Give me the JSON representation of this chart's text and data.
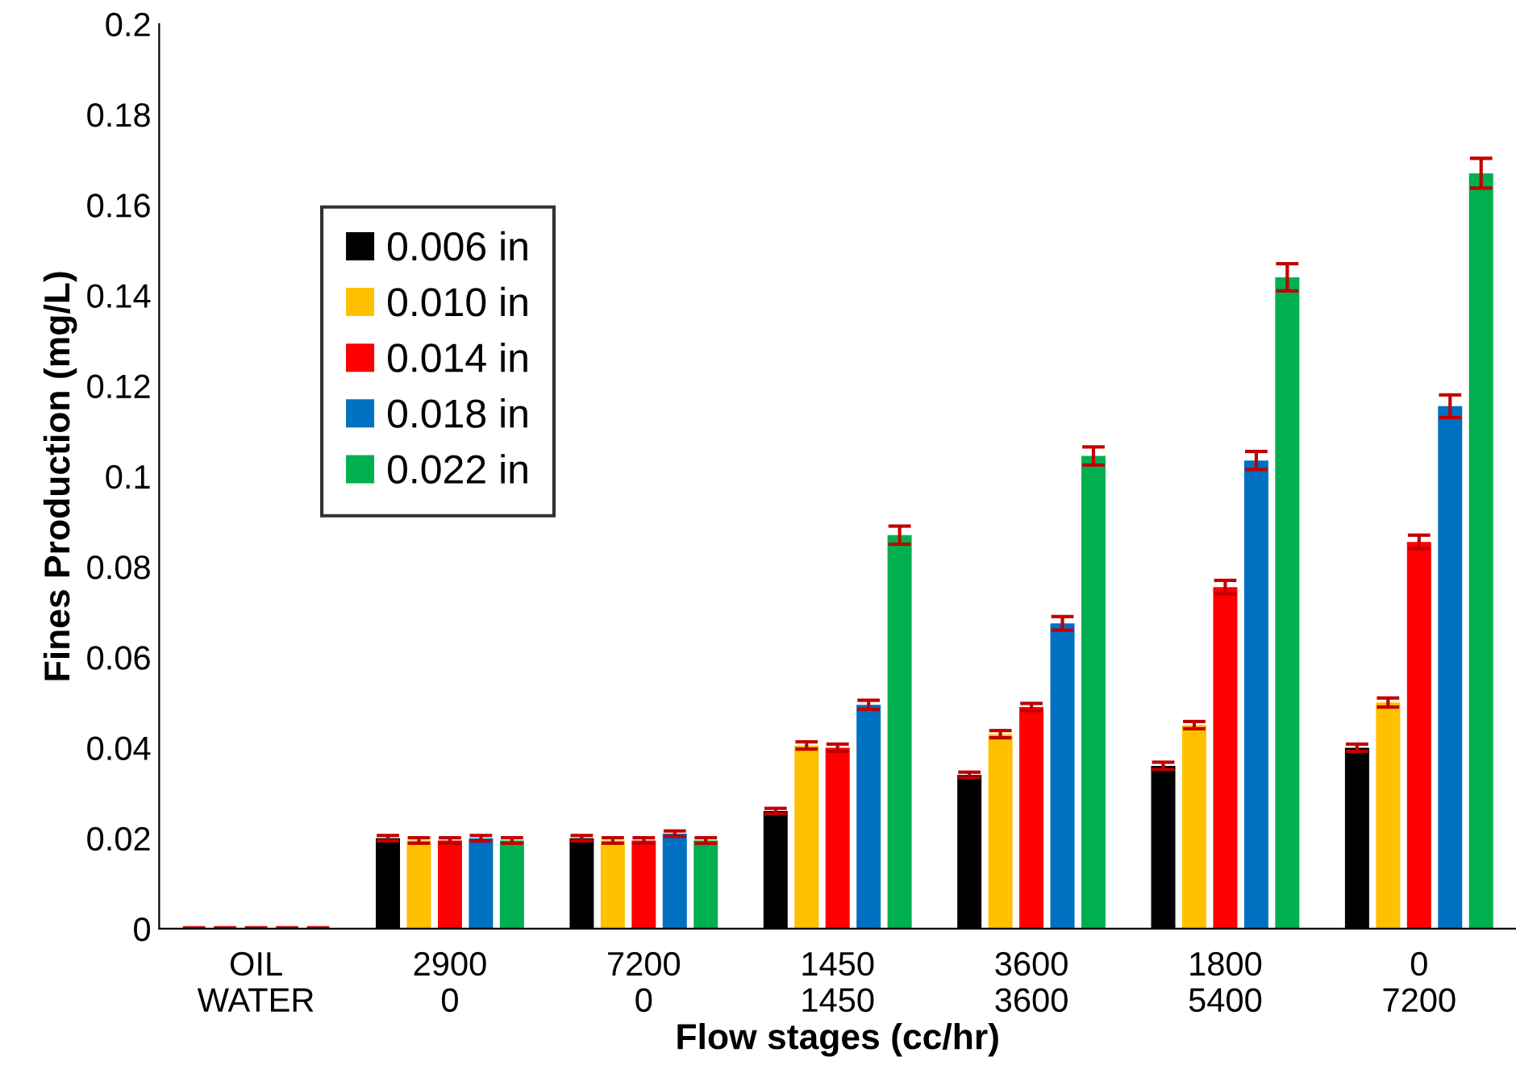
{
  "chart_data": {
    "type": "bar",
    "xlabel": "Flow stages (cc/hr)",
    "ylabel": "Fines Production (mg/L)",
    "categories": [
      "OIL\nWATER",
      "2900\n0",
      "7200\n0",
      "1450\n1450",
      "3600\n3600",
      "1800\n5400",
      "0\n7200"
    ],
    "ylim": [
      0,
      0.2
    ],
    "yticks": [
      0,
      0.02,
      0.04,
      0.06,
      0.08,
      0.1,
      0.12,
      0.14,
      0.16,
      0.18,
      0.2
    ],
    "grid": false,
    "legend": "top left",
    "series": [
      {
        "name": "0.006 in",
        "color": "#000000",
        "values": [
          0,
          0.02,
          0.02,
          0.026,
          0.034,
          0.036,
          0.04
        ],
        "errors": [
          0.0002,
          0.0006,
          0.0006,
          0.0006,
          0.0006,
          0.0008,
          0.0008
        ]
      },
      {
        "name": "0.010 in",
        "color": "#ffc000",
        "values": [
          0,
          0.0195,
          0.0195,
          0.0405,
          0.043,
          0.045,
          0.05
        ],
        "errors": [
          0.0002,
          0.0006,
          0.0006,
          0.0008,
          0.0008,
          0.0008,
          0.001
        ]
      },
      {
        "name": "0.014 in",
        "color": "#ff0000",
        "values": [
          0,
          0.0195,
          0.0195,
          0.04,
          0.049,
          0.0755,
          0.0855
        ],
        "errors": [
          0.0002,
          0.0006,
          0.0006,
          0.0008,
          0.0008,
          0.0015,
          0.0015
        ]
      },
      {
        "name": "0.018 in",
        "color": "#0070c0",
        "values": [
          0,
          0.02,
          0.021,
          0.0495,
          0.0675,
          0.1035,
          0.1155
        ],
        "errors": [
          0.0002,
          0.0006,
          0.0006,
          0.001,
          0.0015,
          0.002,
          0.0025
        ]
      },
      {
        "name": "0.022 in",
        "color": "#00b050",
        "values": [
          0,
          0.0195,
          0.0195,
          0.087,
          0.1045,
          0.144,
          0.167
        ],
        "errors": [
          0.0002,
          0.0006,
          0.0006,
          0.002,
          0.002,
          0.003,
          0.0033
        ]
      }
    ]
  }
}
